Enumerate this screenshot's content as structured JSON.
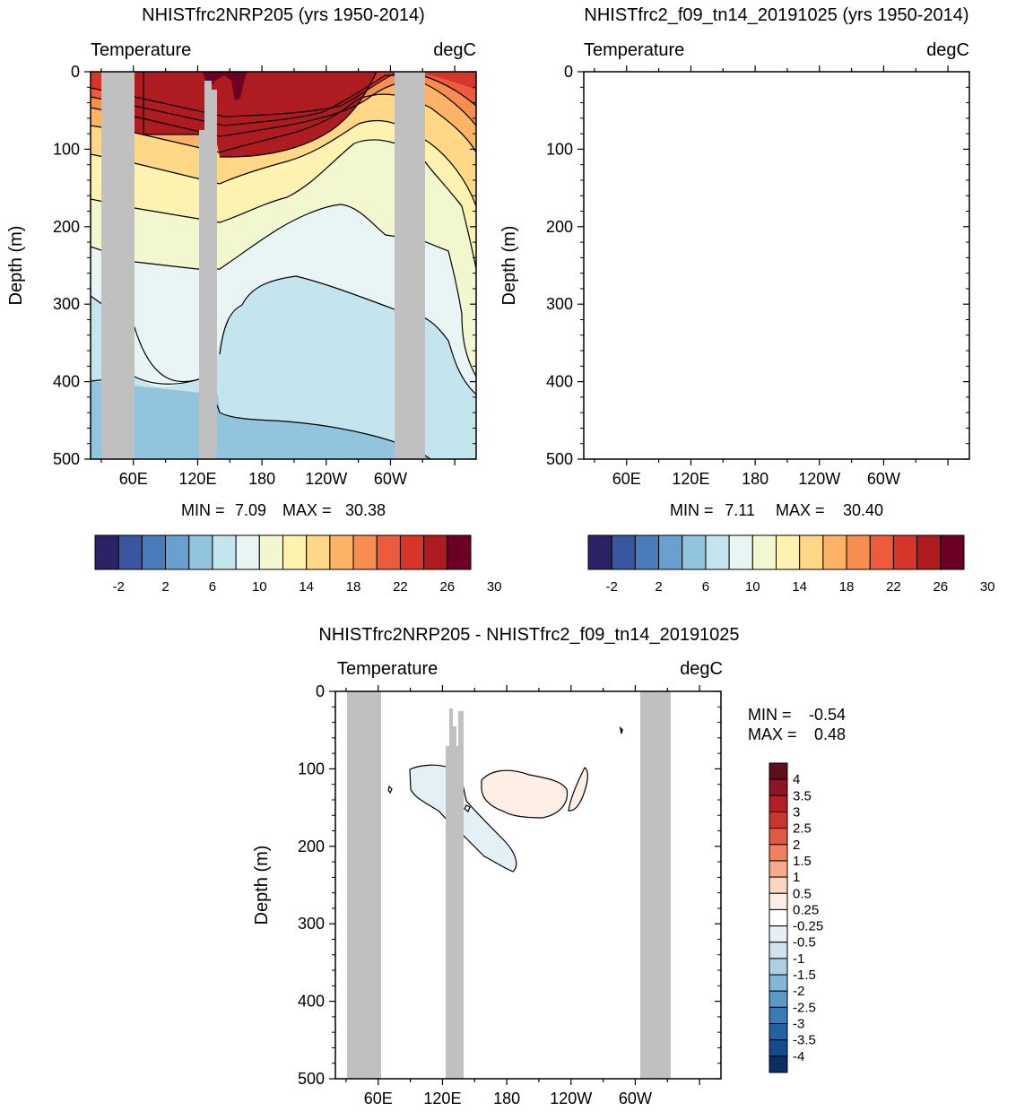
{
  "chart_data": [
    {
      "type": "contour",
      "title": "NHISTfrc2NRP205 (yrs 1950-2014)",
      "left_label": "Temperature",
      "right_label": "degC",
      "ylabel": "Depth (m)",
      "ylim": [
        0,
        500
      ],
      "y_ticks": [
        "0",
        "100",
        "200",
        "300",
        "400",
        "500"
      ],
      "x_ticks": [
        "60E",
        "120E",
        "180",
        "120W",
        "60W"
      ],
      "min_label": "MIN =",
      "min_value": "7.09",
      "max_label": "MAX =",
      "max_value": "30.38",
      "colorbar_labels": [
        "-2",
        "2",
        "6",
        "10",
        "14",
        "18",
        "22",
        "26",
        "30"
      ]
    },
    {
      "type": "contour",
      "title": "NHISTfrc2_f09_tn14_20191025 (yrs 1950-2014)",
      "left_label": "Temperature",
      "right_label": "degC",
      "ylabel": "Depth (m)",
      "ylim": [
        0,
        500
      ],
      "y_ticks": [
        "0",
        "100",
        "200",
        "300",
        "400",
        "500"
      ],
      "x_ticks": [
        "60E",
        "120E",
        "180",
        "120W",
        "60W"
      ],
      "min_label": "MIN =",
      "min_value": "7.11",
      "max_label": "MAX =",
      "max_value": "30.40",
      "colorbar_labels": [
        "-2",
        "2",
        "6",
        "10",
        "14",
        "18",
        "22",
        "26",
        "30"
      ]
    },
    {
      "type": "contour",
      "title": "NHISTfrc2NRP205 - NHISTfrc2_f09_tn14_20191025",
      "left_label": "Temperature",
      "right_label": "degC",
      "ylabel": "Depth (m)",
      "ylim": [
        0,
        500
      ],
      "y_ticks": [
        "0",
        "100",
        "200",
        "300",
        "400",
        "500"
      ],
      "x_ticks": [
        "60E",
        "120E",
        "180",
        "120W",
        "60W"
      ],
      "min_label": "MIN =",
      "min_value": "-0.54",
      "max_label": "MAX =",
      "max_value": "0.48",
      "colorbar_labels": [
        "4",
        "3.5",
        "3",
        "2.5",
        "2",
        "1.5",
        "1",
        "0.5",
        "0.25",
        "-0.25",
        "-0.5",
        "-1",
        "-1.5",
        "-2",
        "-2.5",
        "-3",
        "-3.5",
        "-4"
      ]
    }
  ],
  "colors": {
    "land": "#c0c0c0",
    "temp_scale": [
      "#2a2467",
      "#3a56a0",
      "#4a7cbc",
      "#6aa0cf",
      "#93c4de",
      "#c5e5ee",
      "#e8f5f4",
      "#f2f7d0",
      "#fdf2b0",
      "#fed886",
      "#fdb365",
      "#f88d52",
      "#eb5b3c",
      "#d63629",
      "#ae1c22",
      "#6b0024"
    ],
    "diff_scale": [
      "#5d0f1e",
      "#8e1526",
      "#b21f29",
      "#c8372f",
      "#de5b43",
      "#ef8163",
      "#f7ab8a",
      "#fbd6c0",
      "#fdeee6",
      "#ffffff",
      "#e5eff6",
      "#d1e3ef",
      "#adcfe4",
      "#84b6d8",
      "#5c99c7",
      "#3a7bb6",
      "#2461a2",
      "#154a8b",
      "#0a2f62"
    ]
  }
}
